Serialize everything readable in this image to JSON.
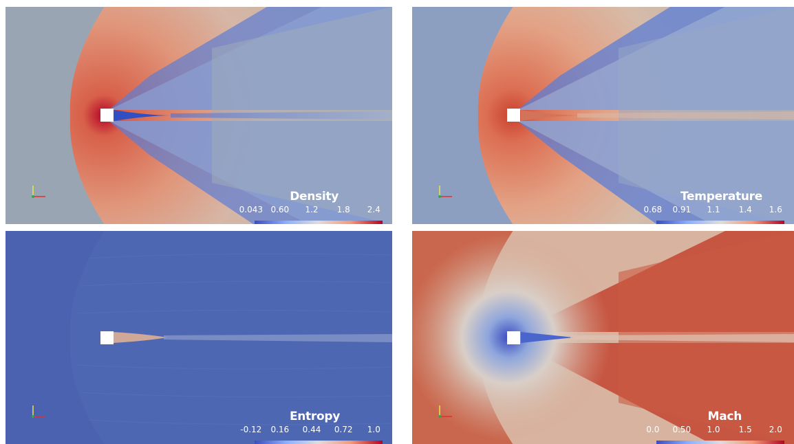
{
  "panels": [
    {
      "id": "density",
      "title": "Density",
      "ticks": [
        "0.043",
        "0.60",
        "1.2",
        "1.8",
        "2.4"
      ],
      "colors": {
        "background": "#9aa5b3",
        "colormap_low": "#3b4cc0",
        "colormap_mid": "#dddddd",
        "colormap_high": "#b40426"
      }
    },
    {
      "id": "temperature",
      "title": "Temperature",
      "ticks": [
        "0.68",
        "0.91",
        "1.1",
        "1.4",
        "1.6"
      ],
      "colors": {
        "background": "#8d9fc0",
        "colormap_low": "#3b4cc0",
        "colormap_mid": "#dddddd",
        "colormap_high": "#b40426"
      }
    },
    {
      "id": "entropy",
      "title": "Entropy",
      "ticks": [
        "-0.12",
        "0.16",
        "0.44",
        "0.72",
        "1.0"
      ],
      "colors": {
        "background": "#4a62b0",
        "colormap_low": "#3b4cc0",
        "colormap_mid": "#dddddd",
        "colormap_high": "#b40426"
      }
    },
    {
      "id": "mach",
      "title": "Mach",
      "ticks": [
        "0.0",
        "0.50",
        "1.0",
        "1.5",
        "2.0"
      ],
      "colors": {
        "background": "#c9674e",
        "colormap_low": "#3b4cc0",
        "colormap_mid": "#dddddd",
        "colormap_high": "#b40426"
      }
    }
  ],
  "axes_triad": {
    "y_label": "Y",
    "x_label": "X",
    "z_label": "Z"
  }
}
